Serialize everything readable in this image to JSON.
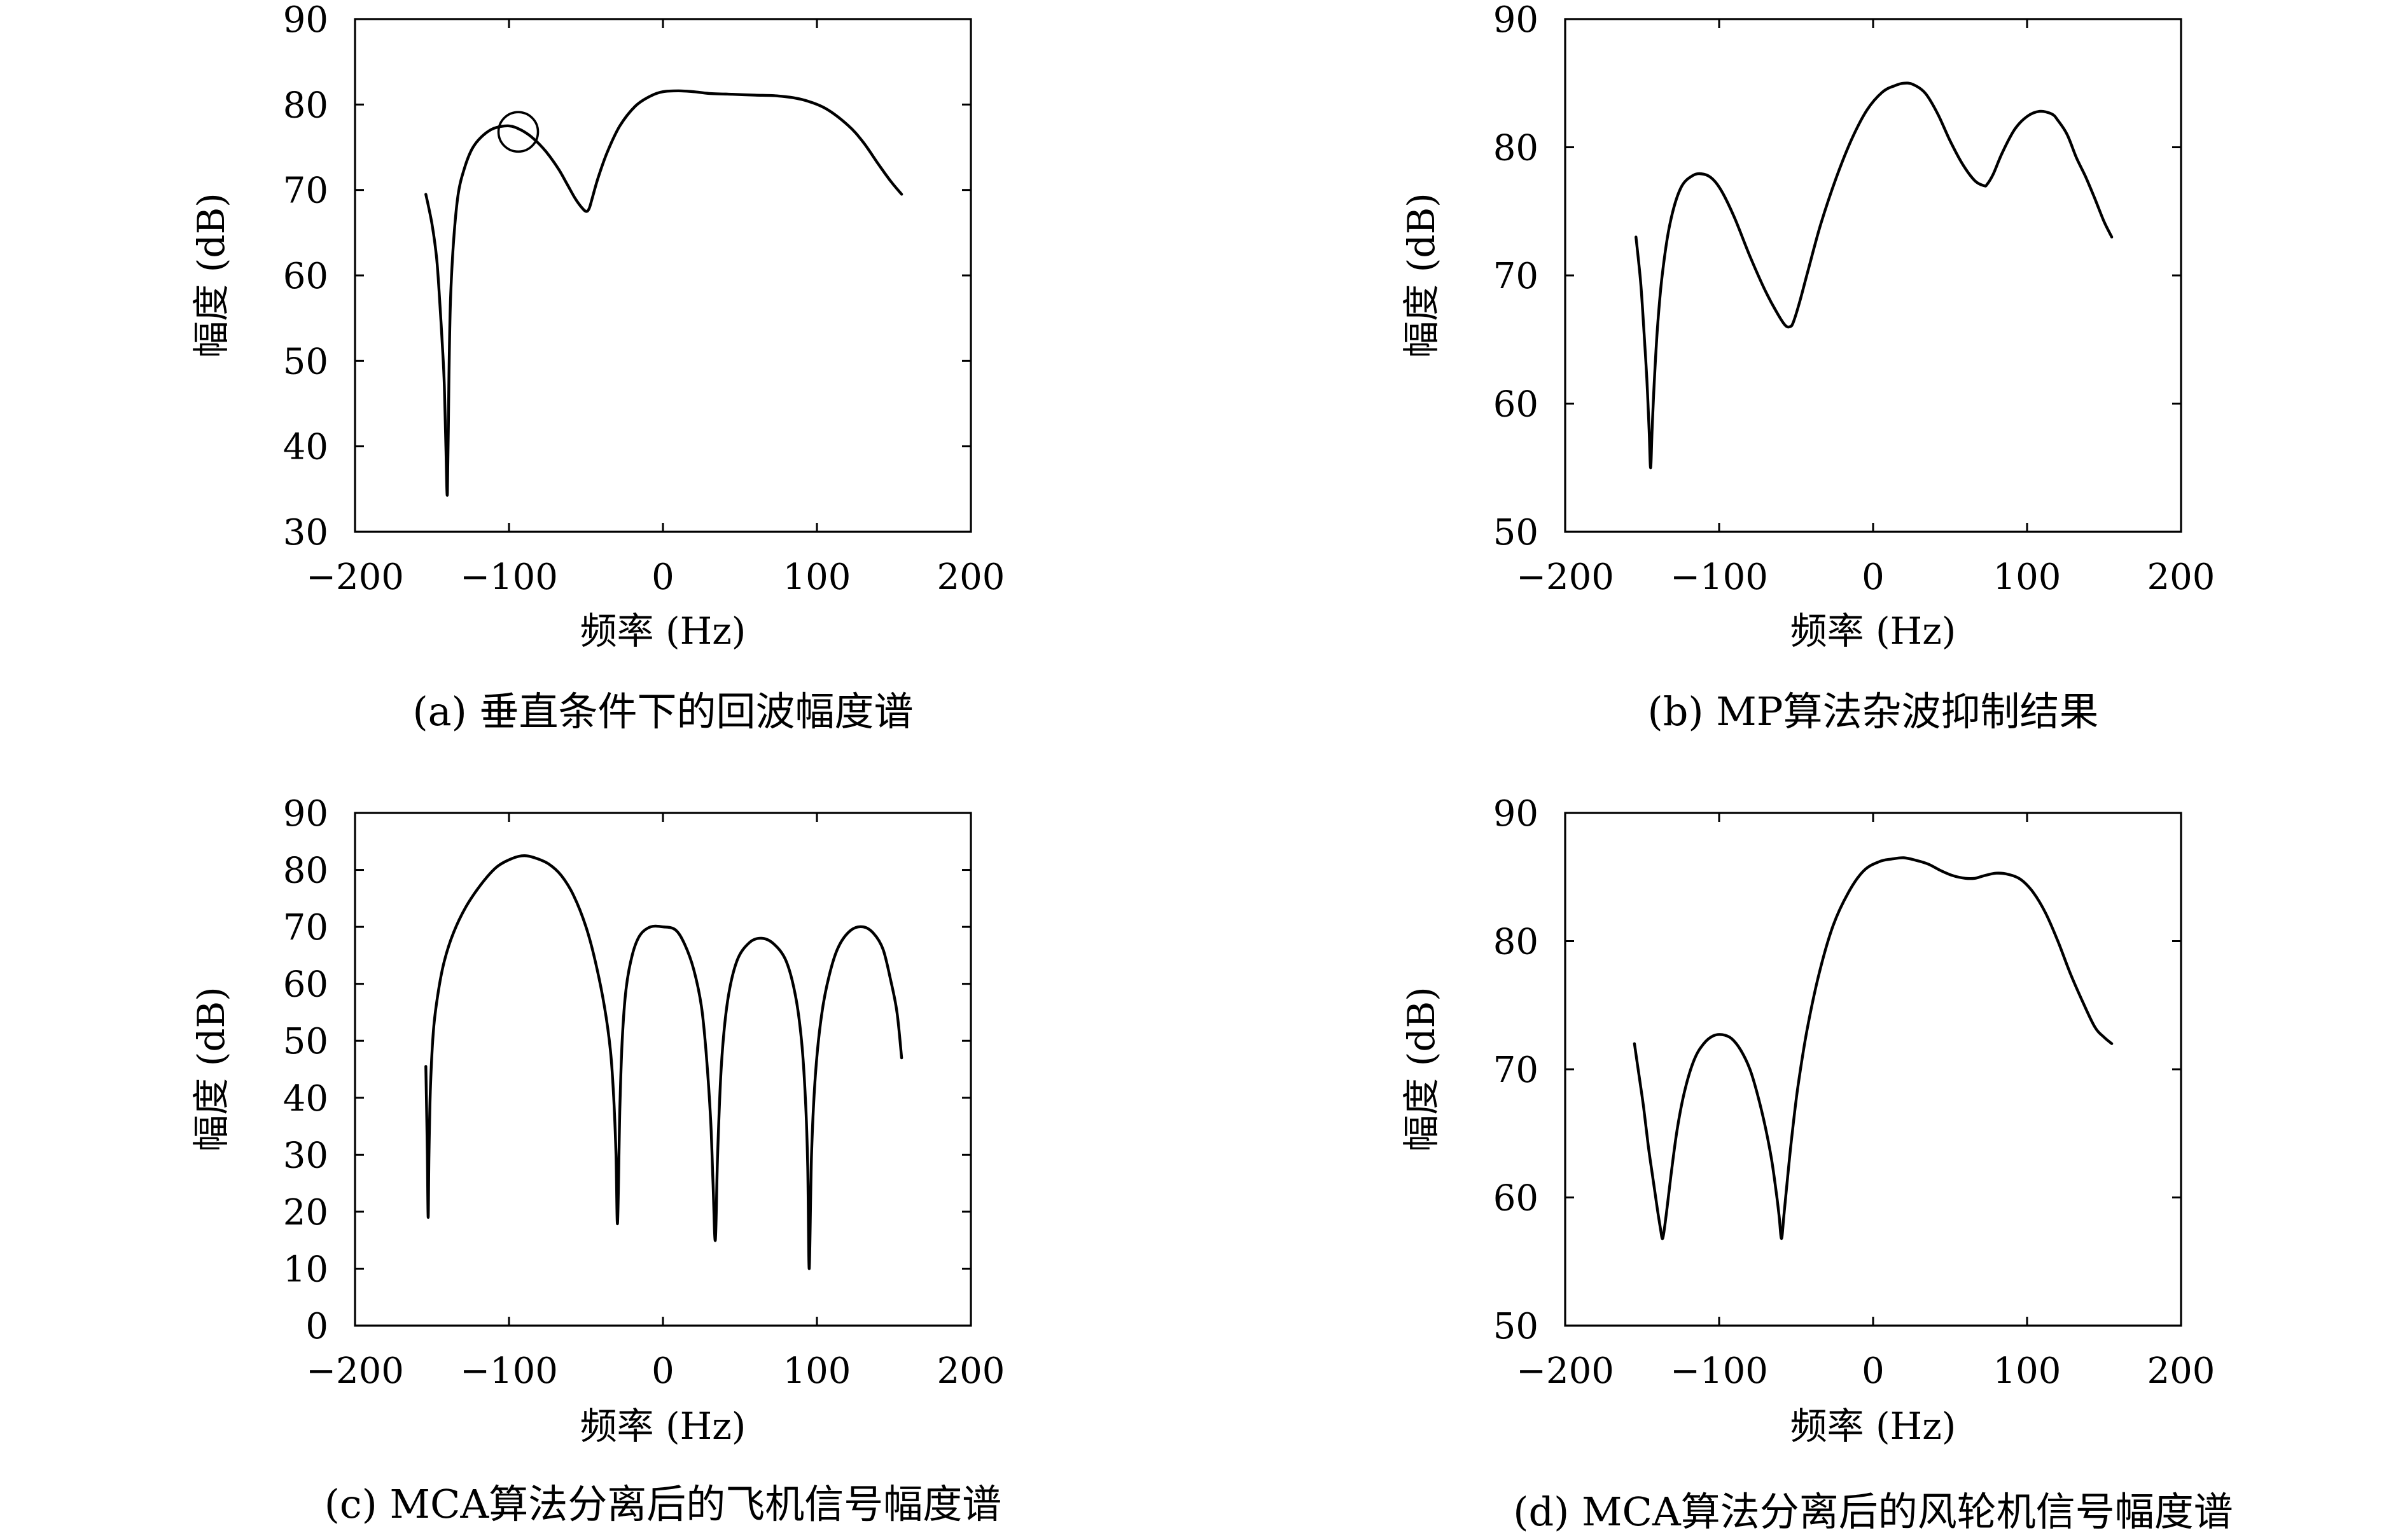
{
  "chart_data": [
    {
      "type": "line",
      "caption": "(a) 垂直条件下的回波幅度谱",
      "xlabel": "频率 (Hz)",
      "ylabel": "幅度 (dB)",
      "xlim": [
        -200,
        200
      ],
      "ylim": [
        30,
        90
      ],
      "xticks": [
        -200,
        -100,
        0,
        100,
        200
      ],
      "xtick_labels": [
        "−200",
        "−100",
        "0",
        "100",
        "200"
      ],
      "yticks": [
        30,
        40,
        50,
        60,
        70,
        80,
        90
      ],
      "ytick_labels": [
        "30",
        "40",
        "50",
        "60",
        "70",
        "80",
        "90"
      ],
      "grid": false,
      "annotations": [
        {
          "type": "circle",
          "x": -94,
          "y": 76.8
        }
      ],
      "series": [
        {
          "x": [
            -154,
            -150,
            -147,
            -145,
            -143,
            -142,
            -141,
            -140,
            -139,
            -138,
            -136,
            -133,
            -129,
            -124,
            -118,
            -110,
            -100,
            -92,
            -84,
            -76,
            -68,
            -62,
            -57,
            -53,
            -50,
            -48,
            -46,
            -42,
            -36,
            -28,
            -18,
            -8,
            0,
            10,
            20,
            30,
            45,
            60,
            75,
            90,
            105,
            120,
            130,
            140,
            148,
            155
          ],
          "y": [
            69.5,
            66,
            62,
            57,
            51,
            47,
            40,
            34.5,
            48,
            57,
            64,
            69.5,
            72.5,
            74.8,
            76.2,
            77.2,
            77.5,
            77,
            76,
            74.5,
            72.5,
            70.6,
            69,
            68,
            67.5,
            67.8,
            69,
            71.5,
            74.5,
            77.5,
            79.8,
            81,
            81.5,
            81.6,
            81.5,
            81.3,
            81.2,
            81.1,
            81,
            80.6,
            79.6,
            77.6,
            75.6,
            73,
            71,
            69.5
          ]
        }
      ]
    },
    {
      "type": "line",
      "caption": "(b) MP算法杂波抑制结果",
      "xlabel": "频率 (Hz)",
      "ylabel": "幅度 (dB)",
      "xlim": [
        -200,
        200
      ],
      "ylim": [
        50,
        90
      ],
      "xticks": [
        -200,
        -100,
        0,
        100,
        200
      ],
      "xtick_labels": [
        "−200",
        "−100",
        "0",
        "100",
        "200"
      ],
      "yticks": [
        50,
        60,
        70,
        80,
        90
      ],
      "ytick_labels": [
        "50",
        "60",
        "70",
        "80",
        "90"
      ],
      "grid": false,
      "series": [
        {
          "x": [
            -154,
            -151,
            -149,
            -147,
            -145.5,
            -144.5,
            -143.5,
            -142,
            -140,
            -137,
            -132,
            -125,
            -117,
            -110,
            -104,
            -98,
            -90,
            -80,
            -70,
            -62,
            -57,
            -54,
            -52,
            -48,
            -42,
            -34,
            -24,
            -14,
            -4,
            6,
            14,
            20,
            26,
            34,
            42,
            50,
            58,
            66,
            72,
            74,
            78,
            84,
            92,
            100,
            108,
            116,
            120,
            126,
            132,
            138,
            144,
            150,
            155
          ],
          "y": [
            73,
            69.5,
            66,
            62,
            58,
            55,
            58,
            62,
            66,
            70,
            74,
            76.8,
            77.8,
            77.9,
            77.5,
            76.5,
            74.5,
            71.5,
            68.8,
            67,
            66.1,
            66,
            66.3,
            67.8,
            70.5,
            74,
            77.6,
            80.6,
            82.9,
            84.3,
            84.8,
            85,
            84.9,
            84.2,
            82.6,
            80.5,
            78.7,
            77.4,
            77,
            77.1,
            77.9,
            79.6,
            81.4,
            82.4,
            82.8,
            82.6,
            82.1,
            81,
            79.2,
            77.7,
            76,
            74.2,
            73
          ]
        }
      ]
    },
    {
      "type": "line",
      "caption": "(c) MCA算法分离后的飞机信号幅度谱",
      "xlabel": "频率 (Hz)",
      "ylabel": "幅度 (dB)",
      "xlim": [
        -200,
        200
      ],
      "ylim": [
        0,
        90
      ],
      "xticks": [
        -200,
        -100,
        0,
        100,
        200
      ],
      "xtick_labels": [
        "−200",
        "−100",
        "0",
        "100",
        "200"
      ],
      "yticks": [
        0,
        10,
        20,
        30,
        40,
        50,
        60,
        70,
        80,
        90
      ],
      "ytick_labels": [
        "0",
        "10",
        "20",
        "30",
        "40",
        "50",
        "60",
        "70",
        "80",
        "90"
      ],
      "grid": false,
      "series": [
        {
          "x": [
            -154,
            -153.5,
            -153,
            -152.5,
            -152,
            -151,
            -149,
            -146,
            -142,
            -136,
            -128,
            -118,
            -108,
            -98,
            -90,
            -82,
            -74,
            -66,
            -58,
            -50,
            -44,
            -38,
            -34,
            -32,
            -30.5,
            -29.5,
            -28,
            -26.5,
            -24,
            -20,
            -15,
            -8,
            0,
            8,
            14,
            20,
            25,
            28,
            31,
            32.5,
            34,
            35.5,
            38,
            42,
            48,
            56,
            64,
            72,
            80,
            86,
            90,
            92.5,
            94,
            95,
            96.5,
            99,
            103,
            108,
            114,
            122,
            130,
            137,
            143,
            148,
            152,
            155
          ],
          "y": [
            45.5,
            38,
            30,
            19,
            30,
            42,
            52,
            58.5,
            64,
            69,
            73.5,
            77.5,
            80.5,
            82,
            82.5,
            82,
            81,
            79,
            75.5,
            70,
            64,
            56,
            48,
            40,
            30,
            18,
            38,
            50,
            59,
            65,
            68.5,
            70,
            70,
            69.5,
            67,
            62.5,
            56,
            48,
            36,
            25,
            15,
            30,
            46,
            57,
            64,
            67.2,
            68,
            67,
            64,
            58,
            50,
            40,
            28,
            10,
            30,
            44,
            54.5,
            61.5,
            66.5,
            69.4,
            70,
            68.8,
            66,
            60.5,
            55,
            47
          ]
        }
      ]
    },
    {
      "type": "line",
      "caption": "(d) MCA算法分离后的风轮机信号幅度谱",
      "xlabel": "频率 (Hz)",
      "ylabel": "幅度 (dB)",
      "xlim": [
        -200,
        200
      ],
      "ylim": [
        50,
        90
      ],
      "xticks": [
        -200,
        -100,
        0,
        100,
        200
      ],
      "xtick_labels": [
        "−200",
        "−100",
        "0",
        "100",
        "200"
      ],
      "yticks": [
        50,
        60,
        70,
        80,
        90
      ],
      "ytick_labels": [
        "50",
        "60",
        "70",
        "80",
        "90"
      ],
      "grid": false,
      "series": [
        {
          "x": [
            -155,
            -152,
            -149,
            -146,
            -143,
            -140,
            -138,
            -137,
            -136,
            -134,
            -131,
            -127,
            -122,
            -116,
            -110,
            -104,
            -98,
            -92,
            -86,
            -80,
            -75,
            -70,
            -66,
            -63,
            -61,
            -59.5,
            -58,
            -56,
            -53,
            -49,
            -43,
            -35,
            -26,
            -16,
            -6,
            4,
            12,
            20,
            28,
            36,
            44,
            52,
            60,
            66,
            72,
            80,
            88,
            96,
            104,
            112,
            120,
            128,
            136,
            144,
            150,
            155
          ],
          "y": [
            72,
            69.5,
            67,
            64,
            61.5,
            59,
            57.5,
            56.8,
            57.2,
            59,
            62,
            65.5,
            68.5,
            70.8,
            72,
            72.6,
            72.7,
            72.4,
            71.5,
            70,
            68,
            65.5,
            63,
            60.5,
            58.5,
            56.8,
            58.5,
            61,
            64.5,
            68.5,
            73,
            77.5,
            81.2,
            83.8,
            85.5,
            86.2,
            86.4,
            86.5,
            86.3,
            86,
            85.5,
            85.1,
            84.9,
            84.9,
            85.1,
            85.3,
            85.2,
            84.8,
            83.8,
            82.2,
            80,
            77.5,
            75.3,
            73.3,
            72.5,
            72
          ]
        }
      ]
    }
  ]
}
